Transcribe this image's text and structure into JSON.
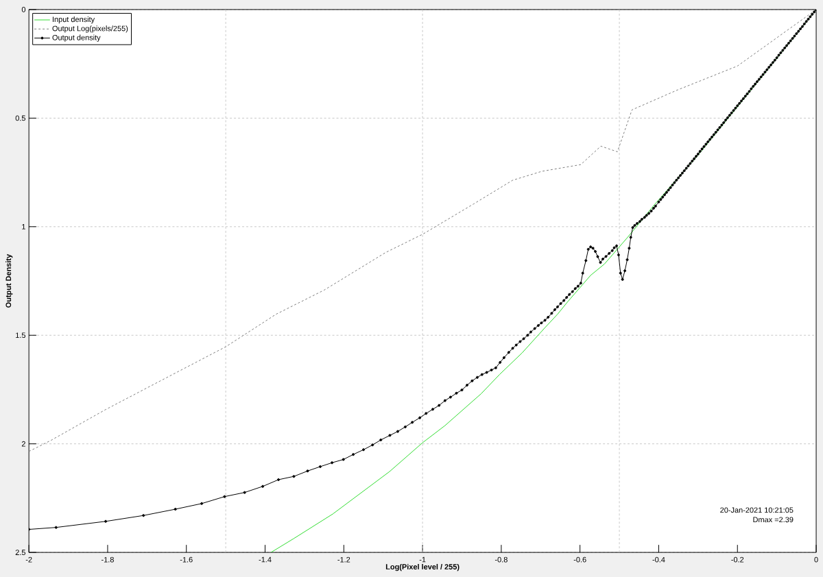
{
  "chart_data": {
    "type": "line",
    "xlabel": "Log(Pixel level / 255)",
    "ylabel": "Output Density",
    "xlim": [
      -2,
      0
    ],
    "ylim": [
      2.5,
      0
    ],
    "xticks": [
      -2,
      -1.8,
      -1.6,
      -1.4,
      -1.2,
      -1,
      -0.8,
      -0.6,
      -0.4,
      -0.2,
      0
    ],
    "yticks": [
      0,
      0.5,
      1,
      1.5,
      2,
      2.5
    ],
    "grid": "y",
    "legend": "top left",
    "ref_lines": [
      {
        "axis": "x",
        "value": -1.5,
        "color": "#c8c8c8",
        "line_style": "dashed"
      },
      {
        "axis": "x",
        "value": -1,
        "color": "#c8c8c8",
        "line_style": "dashed"
      },
      {
        "axis": "x",
        "value": -0.5,
        "color": "#c8c8c8",
        "line_style": "dashed"
      }
    ],
    "annotations": [
      "20-Jan-2021 10:21:05",
      "Dmax =2.39"
    ],
    "series": [
      {
        "name": "Input density",
        "color": "#33dd33",
        "marker": "none",
        "line_style": "solid",
        "x": [
          -1.385,
          -1.327,
          -1.228,
          -1.084,
          -1.0,
          -0.943,
          -0.851,
          -0.804,
          -0.747,
          -0.689,
          -0.657,
          -0.631,
          -0.573,
          -0.538,
          -0.48,
          -0.411,
          -0.3,
          -0.2,
          -0.1,
          0
        ],
        "values": [
          2.5,
          2.436,
          2.323,
          2.128,
          1.995,
          1.916,
          1.769,
          1.68,
          1.581,
          1.465,
          1.403,
          1.345,
          1.224,
          1.172,
          1.051,
          0.899,
          0.67,
          0.447,
          0.224,
          0
        ]
      },
      {
        "name": "Output Log(pixels/255)",
        "color": "#808080",
        "marker": "none",
        "line_style": "dashed",
        "x": [
          -2.0,
          -1.944,
          -1.806,
          -1.667,
          -1.5,
          -1.372,
          -1.25,
          -1.094,
          -1.0,
          -0.87,
          -0.771,
          -0.697,
          -0.598,
          -0.547,
          -0.505,
          -0.468,
          -0.352,
          -0.2,
          0
        ],
        "values": [
          2.035,
          1.984,
          1.843,
          1.711,
          1.553,
          1.403,
          1.292,
          1.119,
          1.035,
          0.895,
          0.786,
          0.745,
          0.714,
          0.629,
          0.655,
          0.462,
          0.37,
          0.26,
          0
        ]
      },
      {
        "name": "Output density",
        "color": "#000000",
        "marker": "circle",
        "line_style": "solid",
        "x": [
          -2.0,
          -1.931,
          -1.805,
          -1.709,
          -1.628,
          -1.561,
          -1.503,
          -1.452,
          -1.406,
          -1.366,
          -1.327,
          -1.292,
          -1.26,
          -1.23,
          -1.201,
          -1.176,
          -1.15,
          -1.127,
          -1.106,
          -1.083,
          -1.063,
          -1.044,
          -1.026,
          -1.007,
          -0.991,
          -0.974,
          -0.958,
          -0.943,
          -0.929,
          -0.914,
          -0.9,
          -0.887,
          -0.874,
          -0.861,
          -0.849,
          -0.837,
          -0.825,
          -0.814,
          -0.803,
          -0.793,
          -0.781,
          -0.771,
          -0.762,
          -0.752,
          -0.743,
          -0.733,
          -0.725,
          -0.715,
          -0.706,
          -0.698,
          -0.689,
          -0.681,
          -0.672,
          -0.664,
          -0.657,
          -0.649,
          -0.641,
          -0.634,
          -0.627,
          -0.619,
          -0.612,
          -0.605,
          -0.598,
          -0.593,
          -0.585,
          -0.579,
          -0.573,
          -0.567,
          -0.561,
          -0.555,
          -0.548,
          -0.542,
          -0.534,
          -0.526,
          -0.518,
          -0.513,
          -0.507,
          -0.502,
          -0.497,
          -0.492,
          -0.486,
          -0.48,
          -0.475,
          -0.471,
          -0.466,
          -0.461,
          -0.455,
          -0.448,
          -0.443,
          -0.436,
          -0.431,
          -0.425,
          -0.419,
          -0.413,
          -0.408,
          -0.4,
          -0.395,
          -0.39,
          -0.385,
          -0.38,
          -0.375,
          -0.37,
          -0.365,
          -0.36,
          -0.355,
          -0.35,
          -0.345,
          -0.34,
          -0.335,
          -0.33,
          -0.325,
          -0.32,
          -0.315,
          -0.31,
          -0.305,
          -0.3,
          -0.295,
          -0.29,
          -0.285,
          -0.28,
          -0.275,
          -0.27,
          -0.265,
          -0.26,
          -0.255,
          -0.25,
          -0.245,
          -0.24,
          -0.235,
          -0.23,
          -0.225,
          -0.22,
          -0.215,
          -0.21,
          -0.205,
          -0.2,
          -0.195,
          -0.19,
          -0.185,
          -0.18,
          -0.175,
          -0.17,
          -0.165,
          -0.16,
          -0.155,
          -0.15,
          -0.145,
          -0.14,
          -0.135,
          -0.13,
          -0.125,
          -0.12,
          -0.115,
          -0.11,
          -0.105,
          -0.1,
          -0.095,
          -0.09,
          -0.085,
          -0.08,
          -0.075,
          -0.07,
          -0.065,
          -0.06,
          -0.055,
          -0.05,
          -0.045,
          -0.04,
          -0.035,
          -0.03,
          -0.025,
          -0.02,
          -0.015,
          -0.01,
          -0.005,
          0
        ],
        "values": [
          2.394,
          2.385,
          2.357,
          2.33,
          2.301,
          2.275,
          2.243,
          2.224,
          2.196,
          2.165,
          2.15,
          2.125,
          2.105,
          2.087,
          2.072,
          2.049,
          2.027,
          2.005,
          1.982,
          1.961,
          1.943,
          1.922,
          1.901,
          1.88,
          1.86,
          1.841,
          1.823,
          1.801,
          1.785,
          1.767,
          1.752,
          1.73,
          1.71,
          1.694,
          1.681,
          1.671,
          1.66,
          1.65,
          1.625,
          1.603,
          1.579,
          1.56,
          1.545,
          1.529,
          1.516,
          1.5,
          1.485,
          1.469,
          1.455,
          1.443,
          1.431,
          1.417,
          1.399,
          1.382,
          1.369,
          1.354,
          1.34,
          1.326,
          1.312,
          1.299,
          1.285,
          1.274,
          1.26,
          1.214,
          1.156,
          1.104,
          1.093,
          1.099,
          1.114,
          1.138,
          1.165,
          1.149,
          1.137,
          1.123,
          1.11,
          1.097,
          1.088,
          1.13,
          1.214,
          1.243,
          1.203,
          1.152,
          1.099,
          1.049,
          1.004,
          0.994,
          0.985,
          0.976,
          0.966,
          0.957,
          0.948,
          0.939,
          0.928,
          0.915,
          0.905,
          0.886,
          0.875,
          0.864,
          0.853,
          0.842,
          0.831,
          0.82,
          0.808,
          0.797,
          0.786,
          0.775,
          0.764,
          0.753,
          0.742,
          0.731,
          0.72,
          0.709,
          0.698,
          0.687,
          0.676,
          0.665,
          0.653,
          0.642,
          0.631,
          0.62,
          0.609,
          0.598,
          0.587,
          0.576,
          0.565,
          0.554,
          0.543,
          0.532,
          0.521,
          0.509,
          0.498,
          0.487,
          0.476,
          0.465,
          0.454,
          0.443,
          0.432,
          0.421,
          0.41,
          0.399,
          0.388,
          0.377,
          0.365,
          0.354,
          0.343,
          0.332,
          0.321,
          0.31,
          0.299,
          0.288,
          0.277,
          0.266,
          0.255,
          0.244,
          0.233,
          0.222,
          0.21,
          0.199,
          0.188,
          0.177,
          0.166,
          0.155,
          0.144,
          0.133,
          0.122,
          0.111,
          0.1,
          0.089,
          0.078,
          0.066,
          0.055,
          0.044,
          0.033,
          0.022,
          0.011,
          0
        ]
      }
    ]
  }
}
